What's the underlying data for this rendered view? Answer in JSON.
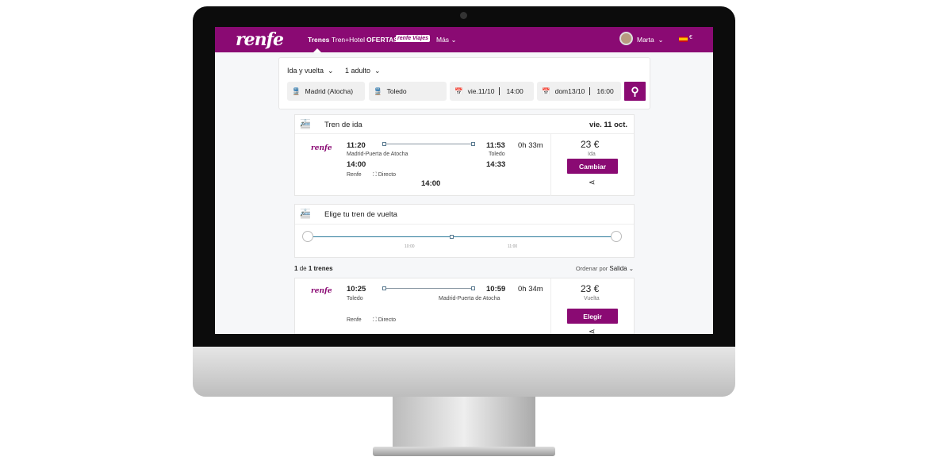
{
  "nav": {
    "logo": "renfe",
    "items": [
      "Trenes",
      "Tren+Hotel",
      "OFERTAS"
    ],
    "viajes": "renfe Viajes",
    "mas": "Más",
    "user": "Marta",
    "currency": "€"
  },
  "search": {
    "trip_type": "Ida y vuelta",
    "passengers": "1 adulto",
    "origin": "Madrid (Atocha)",
    "destination": "Toledo",
    "out_date": "vie.11/10",
    "out_time": "14:00",
    "ret_date": "dom13/10",
    "ret_time": "16:00"
  },
  "outbound": {
    "title": "Tren de ida",
    "date": "vie. 11 oct.",
    "operator_logo": "renfe",
    "dep": "11:20",
    "dep_station": "Madrid-Puerta de Atocha",
    "dep2": "14:00",
    "arr": "11:53",
    "arr_station": "Toledo",
    "arr2": "14:33",
    "duration": "0h 33m",
    "operator": "Renfe",
    "type": "Directo",
    "extra_time": "14:00",
    "price": "23 €",
    "fare": "Ida",
    "button": "Cambiar"
  },
  "return_picker": {
    "title": "Elige tu tren de vuelta",
    "ticks": [
      "10:00",
      "11:00"
    ]
  },
  "results": {
    "count": "1",
    "of": "de",
    "total": "1 trenes",
    "sort_label": "Ordenar por",
    "sort_value": "Salida"
  },
  "return_train": {
    "operator_logo": "renfe",
    "dep": "10:25",
    "dep_station": "Toledo",
    "arr": "10:59",
    "arr_station": "Madrid-Puerta de Atocha",
    "duration": "0h 34m",
    "operator": "Renfe",
    "type": "Directo",
    "price": "23 €",
    "fare": "Vuelta",
    "button": "Elegir"
  },
  "colors": {
    "brand": "#8a0a73"
  }
}
